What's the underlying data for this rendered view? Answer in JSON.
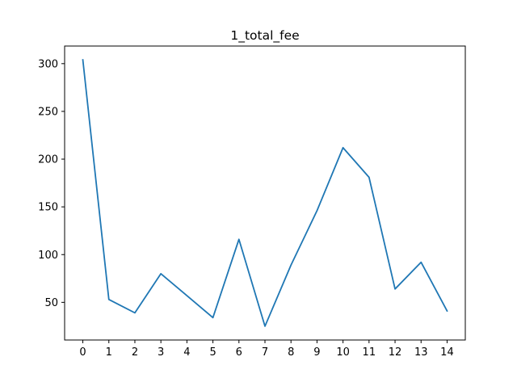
{
  "chart_data": {
    "type": "line",
    "title": "1_total_fee",
    "xlabel": "",
    "ylabel": "",
    "x": [
      0,
      1,
      2,
      3,
      4,
      5,
      6,
      7,
      8,
      9,
      10,
      11,
      12,
      13,
      14
    ],
    "series": [
      {
        "values": [
          304,
          53,
          39,
          80,
          57,
          34,
          116,
          25,
          89,
          146,
          212,
          181,
          64,
          92,
          41
        ],
        "color": "#1f77b4"
      }
    ],
    "xticks": [
      "0",
      "1",
      "2",
      "3",
      "4",
      "5",
      "6",
      "7",
      "8",
      "9",
      "10",
      "11",
      "12",
      "13",
      "14"
    ],
    "yticks": [
      "50",
      "100",
      "150",
      "200",
      "250",
      "300"
    ],
    "xlim": [
      -0.7,
      14.7
    ],
    "ylim": [
      10.55,
      318.45
    ],
    "grid": false,
    "legend": "none"
  }
}
